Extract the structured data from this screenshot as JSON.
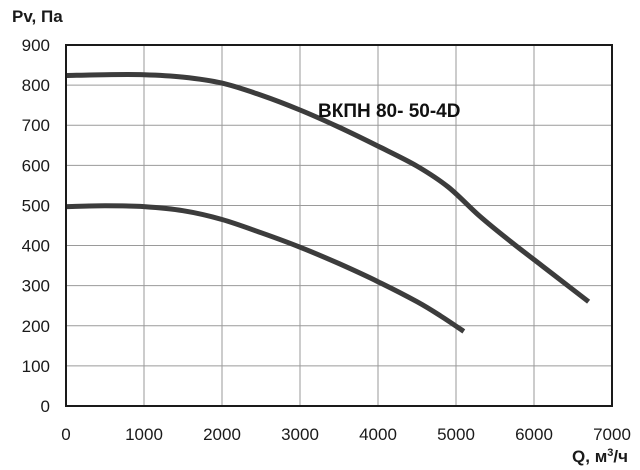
{
  "chart_data": {
    "type": "line",
    "ylabel": "Pv, Па",
    "xlabel_main": "Q, м",
    "xlabel_sup": "3",
    "xlabel_tail": "/ч",
    "xlim": [
      0,
      7000
    ],
    "ylim": [
      0,
      900
    ],
    "x_ticks": [
      0,
      1000,
      2000,
      3000,
      4000,
      5000,
      6000,
      7000
    ],
    "x_tick_labels": [
      "0",
      "1000",
      "2000",
      "3000",
      "4000",
      "5000",
      "6000",
      "7000"
    ],
    "y_ticks": [
      0,
      100,
      200,
      300,
      400,
      500,
      600,
      700,
      800,
      900
    ],
    "y_tick_labels": [
      "0",
      "100",
      "200",
      "300",
      "400",
      "500",
      "600",
      "700",
      "800",
      "900"
    ],
    "grid": true,
    "annotation": "ВКПН 80- 50-4D",
    "series": [
      {
        "x": [
          0,
          500,
          1000,
          1500,
          2000,
          2500,
          3000,
          3500,
          4000,
          4500,
          4900,
          5300,
          5700,
          6100,
          6500,
          6700
        ],
        "values": [
          824,
          826,
          826,
          820,
          805,
          775,
          738,
          695,
          648,
          598,
          546,
          474,
          410,
          350,
          290,
          260
        ]
      },
      {
        "x": [
          0,
          500,
          1000,
          1500,
          2000,
          2500,
          3000,
          3500,
          4000,
          4500,
          4800,
          5100
        ],
        "values": [
          497,
          499,
          497,
          487,
          465,
          432,
          396,
          355,
          310,
          260,
          225,
          186
        ]
      }
    ],
    "colors": {
      "line": "#3c3c3c",
      "grid": "#9a9a9a",
      "frame": "#1a1a1a"
    }
  }
}
